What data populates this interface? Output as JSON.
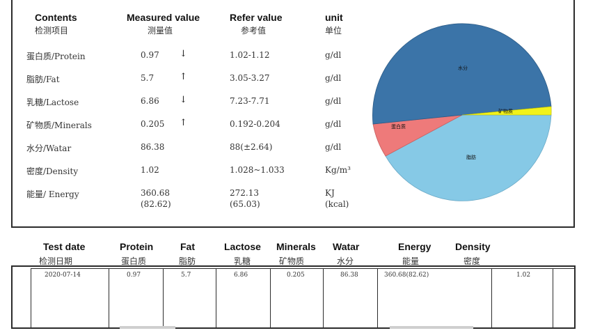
{
  "header": {
    "contents_en": "Contents",
    "contents_cn": "检测项目",
    "measured_en": "Measured value",
    "measured_cn": "测量值",
    "refer_en": "Refer value",
    "refer_cn": "参考值",
    "unit_en": "unit",
    "unit_cn": "单位"
  },
  "rows": [
    {
      "name": "蛋白质/Protein",
      "measured": "0.97",
      "arrow": "↓",
      "refer": "1.02-1.12",
      "unit": "g/dl"
    },
    {
      "name": "脂肪/Fat",
      "measured": "5.7",
      "arrow": "↑",
      "refer": "3.05-3.27",
      "unit": "g/dl"
    },
    {
      "name": "乳糖/Lactose",
      "measured": "6.86",
      "arrow": "↓",
      "refer": "7.23-7.71",
      "unit": "g/dl"
    },
    {
      "name": "矿物质/Minerals",
      "measured": "0.205",
      "arrow": "↑",
      "refer": "0.192-0.204",
      "unit": "g/dl"
    },
    {
      "name": "水分/Watar",
      "measured": "86.38",
      "arrow": "",
      "refer": "88(±2.64)",
      "unit": "g/dl"
    },
    {
      "name": "密度/Density",
      "measured": "1.02",
      "arrow": "",
      "refer": "1.028~1.033",
      "unit": "Kg/m³"
    }
  ],
  "energy": {
    "name": "能量/ Energy",
    "measured1": "360.68",
    "measured2": "(82.62)",
    "refer1": "272.13",
    "refer2": "(65.03)",
    "unit1": "KJ",
    "unit2": "(kcal)"
  },
  "pie": {
    "label_water": "水分",
    "label_minerals": "矿物质",
    "label_protein": "蛋白质",
    "label_fat": "脂肪",
    "colors": {
      "water": "#3b74a8",
      "minerals": "#f2f21a",
      "protein": "#ee7a7a",
      "fat": "#86c9e6"
    }
  },
  "bottom": {
    "headers": [
      {
        "en": "Test date",
        "cn": "检测日期"
      },
      {
        "en": "Protein",
        "cn": "蛋白质"
      },
      {
        "en": "Fat",
        "cn": "脂肪"
      },
      {
        "en": "Lactose",
        "cn": "乳糖"
      },
      {
        "en": "Minerals",
        "cn": "矿物质"
      },
      {
        "en": "Watar",
        "cn": "水分"
      },
      {
        "en": "Energy",
        "cn": "能量"
      },
      {
        "en": "Density",
        "cn": "密度"
      }
    ],
    "values": [
      "2020-07-14",
      "0.97",
      "5.7",
      "6.86",
      "0.205",
      "86.38",
      "360.68(82.62)",
      "1.02"
    ]
  }
}
